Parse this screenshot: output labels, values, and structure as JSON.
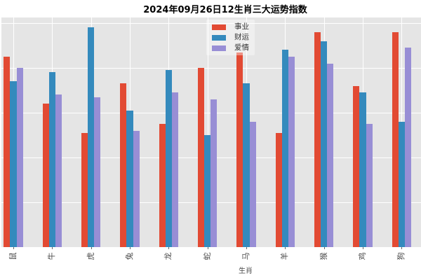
{
  "chart_data": {
    "type": "bar",
    "title": "2024年09月26日12生肖三大运势指数",
    "xlabel": "生肖",
    "ylabel": "",
    "categories": [
      "鼠",
      "牛",
      "虎",
      "兔",
      "龙",
      "蛇",
      "马",
      "羊",
      "猴",
      "鸡",
      "狗"
    ],
    "series": [
      {
        "name": "事业",
        "color": "#E24A33",
        "values": [
          85,
          64,
          51,
          73,
          55,
          80,
          87,
          51,
          96,
          72,
          96
        ]
      },
      {
        "name": "财运",
        "color": "#348ABD",
        "values": [
          74,
          78,
          98,
          61,
          79,
          50,
          73,
          88,
          92,
          69,
          56
        ]
      },
      {
        "name": "爱情",
        "color": "#988ED5",
        "values": [
          80,
          68,
          67,
          52,
          69,
          66,
          56,
          85,
          82,
          55,
          89
        ]
      }
    ],
    "ylim": [
      0,
      102.5
    ],
    "grid_step": 20,
    "grid": "on",
    "legend_position": "top-center"
  },
  "colors": {
    "figure_bg": "#FFFFFF",
    "panel_bg": "#E5E5E5",
    "gridline": "#FFFFFF",
    "title_text": "#000000",
    "tick_text": "#4A4A4A",
    "legend_text": "#333333"
  }
}
